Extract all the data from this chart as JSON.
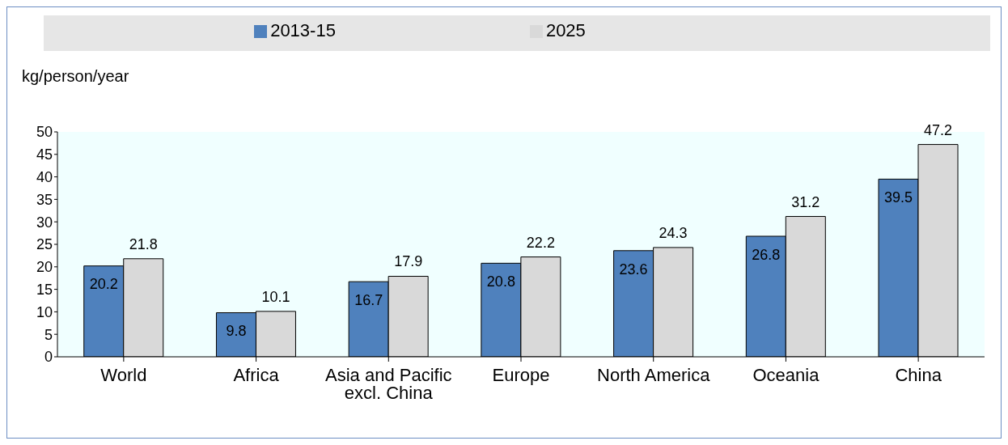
{
  "chart_data": {
    "type": "bar",
    "ylabel": "kg/person/year",
    "categories": [
      "World",
      "Africa",
      "Asia and Pacific excl. China",
      "Europe",
      "North America",
      "Oceania",
      "China"
    ],
    "series": [
      {
        "name": "2013-15",
        "color": "#4f81bd",
        "values": [
          20.2,
          9.8,
          16.7,
          20.8,
          23.6,
          26.8,
          39.5
        ]
      },
      {
        "name": "2025",
        "color": "#d9d9d9",
        "values": [
          21.8,
          10.1,
          17.9,
          22.2,
          24.3,
          31.2,
          47.2
        ]
      }
    ],
    "ylim": [
      0,
      50
    ],
    "yticks": [
      0,
      5,
      10,
      15,
      20,
      25,
      30,
      35,
      40,
      45,
      50
    ],
    "data_labels": true,
    "legend": "top"
  }
}
